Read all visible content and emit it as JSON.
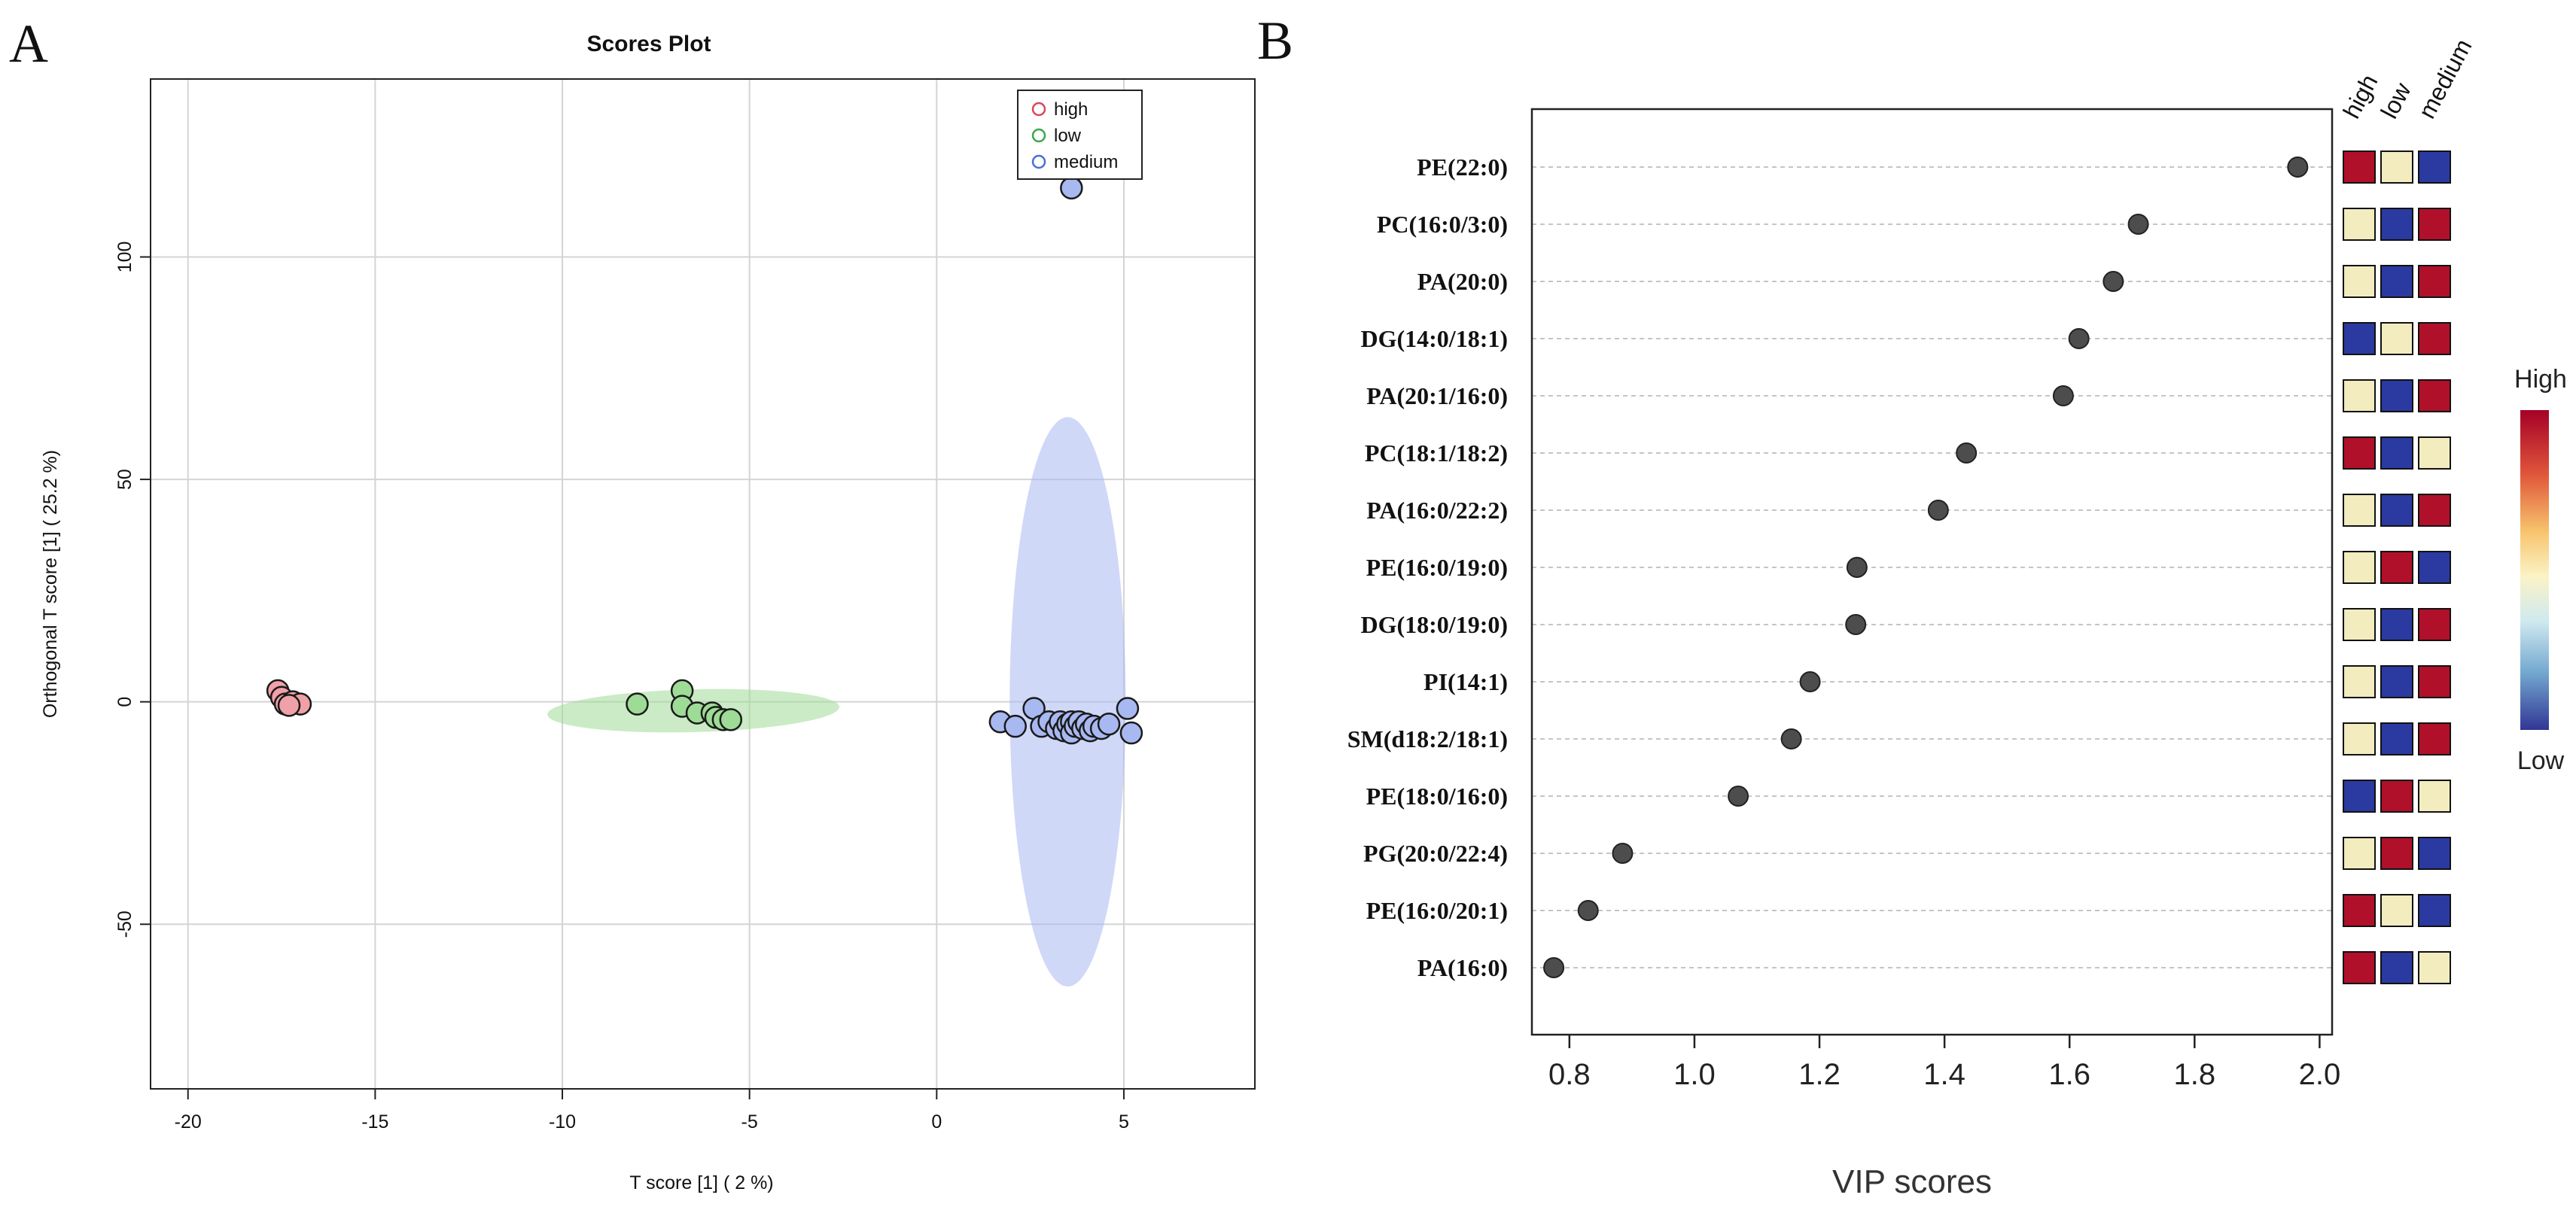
{
  "panel_a_label": "A",
  "panel_b_label": "B",
  "chart_data": [
    {
      "type": "scatter",
      "title": "Scores Plot",
      "xlabel": "T score [1] ( 2 %)",
      "ylabel": "Orthogonal T score [1] ( 25.2 %)",
      "xlim": [
        -21,
        8.5
      ],
      "ylim": [
        -87,
        140
      ],
      "xticks": [
        -20,
        -15,
        -10,
        -5,
        0,
        5
      ],
      "yticks": [
        -50,
        0,
        50,
        100
      ],
      "grid": true,
      "legend": {
        "position": "top-right",
        "entries": [
          "high",
          "low",
          "medium"
        ]
      },
      "series": [
        {
          "name": "high",
          "color": "#d9475a",
          "fill": "#f0a0a8",
          "points": [
            [
              -17.6,
              2.5
            ],
            [
              -17.5,
              1.0
            ],
            [
              -17.4,
              -0.5
            ],
            [
              -17.2,
              0.0
            ],
            [
              -17.0,
              -0.5
            ],
            [
              -17.3,
              -0.8
            ]
          ]
        },
        {
          "name": "low",
          "color": "#3aa84a",
          "fill": "#9edb96",
          "ellipse": {
            "cx": -6.5,
            "cy": -2.0,
            "rx": 3.9,
            "ry": 4.8,
            "rot_deg": -1.5
          },
          "points": [
            [
              -8.0,
              -0.5
            ],
            [
              -6.8,
              2.5
            ],
            [
              -6.8,
              -1.0
            ],
            [
              -6.4,
              -2.5
            ],
            [
              -6.0,
              -2.5
            ],
            [
              -5.9,
              -3.5
            ],
            [
              -5.7,
              -4.0
            ],
            [
              -5.5,
              -4.0
            ]
          ]
        },
        {
          "name": "medium",
          "color": "#4a6fd8",
          "fill": "#a8b8f0",
          "ellipse": {
            "cx": 3.5,
            "cy": 0.0,
            "rx": 1.55,
            "ry": 64,
            "rot_deg": 0
          },
          "points": [
            [
              3.6,
              115.5
            ],
            [
              1.7,
              -4.5
            ],
            [
              2.1,
              -5.5
            ],
            [
              2.6,
              -1.5
            ],
            [
              2.8,
              -5.5
            ],
            [
              3.0,
              -4.5
            ],
            [
              3.2,
              -6.0
            ],
            [
              3.3,
              -4.5
            ],
            [
              3.4,
              -6.5
            ],
            [
              3.5,
              -5.0
            ],
            [
              3.6,
              -4.5
            ],
            [
              3.6,
              -7.0
            ],
            [
              3.7,
              -5.5
            ],
            [
              3.8,
              -4.5
            ],
            [
              3.9,
              -6.0
            ],
            [
              4.0,
              -5.0
            ],
            [
              4.1,
              -6.5
            ],
            [
              4.2,
              -5.5
            ],
            [
              4.4,
              -6.0
            ],
            [
              4.6,
              -5.0
            ],
            [
              5.1,
              -1.5
            ],
            [
              5.2,
              -7.0
            ]
          ]
        }
      ]
    },
    {
      "type": "scatter",
      "orientation": "horizontal-dot",
      "xlabel": "VIP scores",
      "xlim": [
        0.74,
        2.02
      ],
      "xticks": [
        "0.8",
        "1.0",
        "1.2",
        "1.4",
        "1.6",
        "1.8",
        "2.0"
      ],
      "categories": [
        "PE(22:0)",
        "PC(16:0/3:0)",
        "PA(20:0)",
        "DG(14:0/18:1)",
        "PA(20:1/16:0)",
        "PC(18:1/18:2)",
        "PA(16:0/22:2)",
        "PE(16:0/19:0)",
        "DG(18:0/19:0)",
        "PI(14:1)",
        "SM(d18:2/18:1)",
        "PE(18:0/16:0)",
        "PG(20:0/22:4)",
        "PE(16:0/20:1)",
        "PA(16:0)"
      ],
      "values": [
        1.965,
        1.71,
        1.67,
        1.615,
        1.59,
        1.435,
        1.39,
        1.26,
        1.258,
        1.185,
        1.155,
        1.07,
        0.885,
        0.83,
        0.775
      ],
      "heatmap": {
        "groups": [
          "high",
          "low",
          "medium"
        ],
        "levels": [
          [
            "high",
            "mid",
            "low"
          ],
          [
            "mid",
            "low",
            "high"
          ],
          [
            "mid",
            "low",
            "high"
          ],
          [
            "low",
            "mid",
            "high"
          ],
          [
            "mid",
            "low",
            "high"
          ],
          [
            "high",
            "low",
            "mid"
          ],
          [
            "mid",
            "low",
            "high"
          ],
          [
            "mid",
            "high",
            "low"
          ],
          [
            "mid",
            "low",
            "high"
          ],
          [
            "mid",
            "low",
            "high"
          ],
          [
            "mid",
            "low",
            "high"
          ],
          [
            "low",
            "high",
            "mid"
          ],
          [
            "mid",
            "high",
            "low"
          ],
          [
            "high",
            "mid",
            "low"
          ],
          [
            "high",
            "low",
            "mid"
          ]
        ],
        "colors": {
          "high": "#b0102a",
          "mid": "#f2ecbe",
          "low": "#2b3aa0"
        }
      },
      "colorbar": {
        "high_label": "High",
        "low_label": "Low"
      }
    }
  ]
}
